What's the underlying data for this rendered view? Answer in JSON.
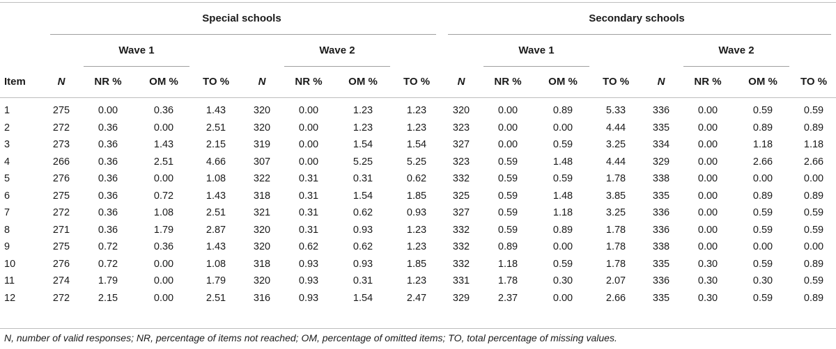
{
  "table": {
    "groups": [
      "Special schools",
      "Secondary schools"
    ],
    "waves": [
      "Wave 1",
      "Wave 2",
      "Wave 1",
      "Wave 2"
    ],
    "columns": [
      "Item",
      "N",
      "NR %",
      "OM %",
      "TO %",
      "N",
      "NR %",
      "OM %",
      "TO %",
      "N",
      "NR %",
      "OM %",
      "TO %",
      "N",
      "NR %",
      "OM %",
      "TO %"
    ],
    "rows": [
      [
        "1",
        "275",
        "0.00",
        "0.36",
        "1.43",
        "320",
        "0.00",
        "1.23",
        "1.23",
        "320",
        "0.00",
        "0.89",
        "5.33",
        "336",
        "0.00",
        "0.59",
        "0.59"
      ],
      [
        "2",
        "272",
        "0.36",
        "0.00",
        "2.51",
        "320",
        "0.00",
        "1.23",
        "1.23",
        "323",
        "0.00",
        "0.00",
        "4.44",
        "335",
        "0.00",
        "0.89",
        "0.89"
      ],
      [
        "3",
        "273",
        "0.36",
        "1.43",
        "2.15",
        "319",
        "0.00",
        "1.54",
        "1.54",
        "327",
        "0.00",
        "0.59",
        "3.25",
        "334",
        "0.00",
        "1.18",
        "1.18"
      ],
      [
        "4",
        "266",
        "0.36",
        "2.51",
        "4.66",
        "307",
        "0.00",
        "5.25",
        "5.25",
        "323",
        "0.59",
        "1.48",
        "4.44",
        "329",
        "0.00",
        "2.66",
        "2.66"
      ],
      [
        "5",
        "276",
        "0.36",
        "0.00",
        "1.08",
        "322",
        "0.31",
        "0.31",
        "0.62",
        "332",
        "0.59",
        "0.59",
        "1.78",
        "338",
        "0.00",
        "0.00",
        "0.00"
      ],
      [
        "6",
        "275",
        "0.36",
        "0.72",
        "1.43",
        "318",
        "0.31",
        "1.54",
        "1.85",
        "325",
        "0.59",
        "1.48",
        "3.85",
        "335",
        "0.00",
        "0.89",
        "0.89"
      ],
      [
        "7",
        "272",
        "0.36",
        "1.08",
        "2.51",
        "321",
        "0.31",
        "0.62",
        "0.93",
        "327",
        "0.59",
        "1.18",
        "3.25",
        "336",
        "0.00",
        "0.59",
        "0.59"
      ],
      [
        "8",
        "271",
        "0.36",
        "1.79",
        "2.87",
        "320",
        "0.31",
        "0.93",
        "1.23",
        "332",
        "0.59",
        "0.89",
        "1.78",
        "336",
        "0.00",
        "0.59",
        "0.59"
      ],
      [
        "9",
        "275",
        "0.72",
        "0.36",
        "1.43",
        "320",
        "0.62",
        "0.62",
        "1.23",
        "332",
        "0.89",
        "0.00",
        "1.78",
        "338",
        "0.00",
        "0.00",
        "0.00"
      ],
      [
        "10",
        "276",
        "0.72",
        "0.00",
        "1.08",
        "318",
        "0.93",
        "0.93",
        "1.85",
        "332",
        "1.18",
        "0.59",
        "1.78",
        "335",
        "0.30",
        "0.59",
        "0.89"
      ],
      [
        "11",
        "274",
        "1.79",
        "0.00",
        "1.79",
        "320",
        "0.93",
        "0.31",
        "1.23",
        "331",
        "1.78",
        "0.30",
        "2.07",
        "336",
        "0.30",
        "0.30",
        "0.59"
      ],
      [
        "12",
        "272",
        "2.15",
        "0.00",
        "2.51",
        "316",
        "0.93",
        "1.54",
        "2.47",
        "329",
        "2.37",
        "0.00",
        "2.66",
        "335",
        "0.30",
        "0.59",
        "0.89"
      ]
    ],
    "footnote": "N, number of valid responses; NR, percentage of items not reached; OM, percentage of omitted items; TO, total percentage of missing values."
  }
}
